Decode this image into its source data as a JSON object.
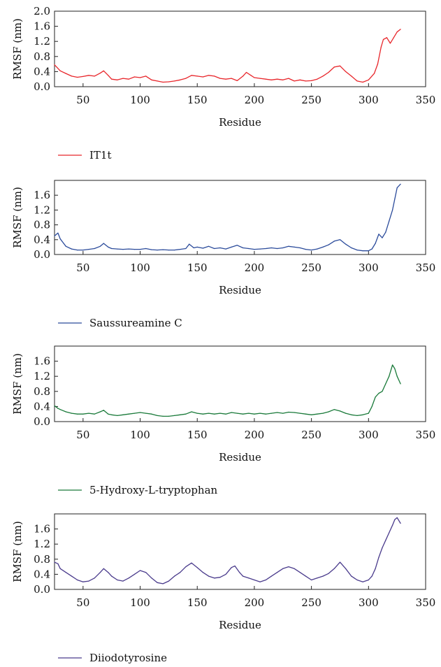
{
  "chart_data": [
    {
      "type": "line",
      "xlabel": "Residue",
      "ylabel": "RMSF (nm)",
      "xlim": [
        25,
        350
      ],
      "ylim": [
        0,
        2.0
      ],
      "xticks": [
        "50",
        "100",
        "150",
        "200",
        "250",
        "300",
        "350"
      ],
      "yticks": [
        "0.0",
        "0.4",
        "0.8",
        "1.2",
        "1.6",
        "2.0"
      ],
      "legend": "bottom-left",
      "series": [
        {
          "name": "IT1t",
          "color": "#e8262b",
          "x": [
            25,
            30,
            35,
            40,
            45,
            50,
            55,
            60,
            65,
            68,
            72,
            75,
            80,
            85,
            90,
            95,
            100,
            105,
            110,
            115,
            120,
            125,
            130,
            135,
            140,
            145,
            150,
            155,
            160,
            165,
            170,
            175,
            180,
            185,
            190,
            193,
            197,
            200,
            205,
            210,
            215,
            220,
            225,
            230,
            235,
            240,
            245,
            250,
            255,
            260,
            265,
            270,
            275,
            280,
            285,
            290,
            295,
            300,
            305,
            308,
            311,
            313,
            316,
            319,
            322,
            325,
            328
          ],
          "values": [
            0.58,
            0.42,
            0.35,
            0.28,
            0.25,
            0.27,
            0.3,
            0.28,
            0.36,
            0.42,
            0.3,
            0.2,
            0.18,
            0.22,
            0.2,
            0.26,
            0.24,
            0.28,
            0.18,
            0.15,
            0.12,
            0.13,
            0.15,
            0.18,
            0.22,
            0.3,
            0.28,
            0.26,
            0.3,
            0.28,
            0.22,
            0.2,
            0.22,
            0.16,
            0.28,
            0.38,
            0.3,
            0.24,
            0.22,
            0.2,
            0.18,
            0.2,
            0.18,
            0.22,
            0.15,
            0.18,
            0.15,
            0.16,
            0.2,
            0.28,
            0.38,
            0.52,
            0.55,
            0.4,
            0.28,
            0.15,
            0.12,
            0.18,
            0.35,
            0.6,
            1.05,
            1.25,
            1.3,
            1.15,
            1.3,
            1.45,
            1.52
          ]
        },
        {
          "name": "Saussureamine C",
          "color": "#2b4b9b",
          "x": [
            25,
            28,
            30,
            33,
            35,
            40,
            45,
            50,
            55,
            60,
            65,
            68,
            72,
            75,
            80,
            85,
            90,
            95,
            100,
            105,
            110,
            115,
            120,
            125,
            130,
            135,
            140,
            143,
            147,
            150,
            155,
            160,
            165,
            170,
            175,
            180,
            185,
            190,
            195,
            200,
            205,
            210,
            215,
            220,
            225,
            230,
            235,
            240,
            245,
            250,
            255,
            260,
            265,
            270,
            275,
            280,
            285,
            290,
            295,
            300,
            303,
            306,
            309,
            312,
            315,
            318,
            321,
            323,
            325,
            328
          ],
          "values": [
            0.5,
            0.58,
            0.42,
            0.3,
            0.22,
            0.15,
            0.12,
            0.12,
            0.14,
            0.16,
            0.22,
            0.3,
            0.2,
            0.16,
            0.15,
            0.14,
            0.15,
            0.14,
            0.14,
            0.16,
            0.13,
            0.12,
            0.13,
            0.12,
            0.12,
            0.14,
            0.16,
            0.28,
            0.18,
            0.2,
            0.17,
            0.22,
            0.16,
            0.18,
            0.15,
            0.2,
            0.25,
            0.18,
            0.16,
            0.14,
            0.15,
            0.16,
            0.18,
            0.16,
            0.18,
            0.22,
            0.2,
            0.18,
            0.14,
            0.12,
            0.15,
            0.2,
            0.26,
            0.36,
            0.4,
            0.28,
            0.18,
            0.12,
            0.1,
            0.1,
            0.15,
            0.3,
            0.55,
            0.45,
            0.6,
            0.9,
            1.2,
            1.5,
            1.8,
            1.9
          ]
        },
        {
          "name": "5-Hydroxy-L-tryptophan",
          "color": "#1a7a3a",
          "x": [
            25,
            28,
            30,
            35,
            40,
            45,
            50,
            55,
            60,
            65,
            68,
            72,
            75,
            80,
            85,
            90,
            95,
            100,
            105,
            110,
            115,
            120,
            125,
            130,
            135,
            140,
            145,
            150,
            155,
            160,
            165,
            170,
            175,
            180,
            185,
            190,
            195,
            200,
            205,
            210,
            215,
            220,
            225,
            230,
            235,
            240,
            245,
            250,
            255,
            260,
            265,
            270,
            275,
            280,
            285,
            290,
            295,
            300,
            303,
            306,
            309,
            312,
            315,
            318,
            321,
            323,
            325,
            328
          ],
          "values": [
            0.42,
            0.35,
            0.32,
            0.26,
            0.22,
            0.2,
            0.2,
            0.22,
            0.2,
            0.26,
            0.3,
            0.2,
            0.18,
            0.16,
            0.18,
            0.2,
            0.22,
            0.24,
            0.22,
            0.2,
            0.16,
            0.14,
            0.14,
            0.16,
            0.18,
            0.2,
            0.26,
            0.22,
            0.2,
            0.22,
            0.2,
            0.22,
            0.2,
            0.24,
            0.22,
            0.2,
            0.22,
            0.2,
            0.22,
            0.2,
            0.22,
            0.24,
            0.22,
            0.25,
            0.24,
            0.22,
            0.2,
            0.18,
            0.2,
            0.22,
            0.26,
            0.32,
            0.28,
            0.22,
            0.18,
            0.16,
            0.18,
            0.22,
            0.4,
            0.65,
            0.75,
            0.8,
            1.0,
            1.2,
            1.5,
            1.4,
            1.2,
            1.0
          ]
        },
        {
          "name": "Diiodotyrosine",
          "color": "#4a3b8c",
          "x": [
            25,
            28,
            30,
            35,
            40,
            45,
            50,
            55,
            60,
            65,
            68,
            72,
            75,
            80,
            85,
            90,
            95,
            100,
            105,
            110,
            115,
            120,
            125,
            130,
            135,
            140,
            145,
            150,
            155,
            160,
            165,
            170,
            175,
            180,
            183,
            187,
            190,
            195,
            200,
            205,
            210,
            215,
            220,
            225,
            230,
            235,
            240,
            245,
            250,
            255,
            260,
            265,
            270,
            275,
            280,
            285,
            290,
            295,
            300,
            303,
            306,
            309,
            312,
            315,
            318,
            321,
            323,
            325,
            328
          ],
          "values": [
            0.72,
            0.68,
            0.55,
            0.45,
            0.35,
            0.25,
            0.2,
            0.22,
            0.3,
            0.45,
            0.55,
            0.45,
            0.35,
            0.25,
            0.22,
            0.3,
            0.4,
            0.5,
            0.45,
            0.3,
            0.18,
            0.15,
            0.22,
            0.35,
            0.45,
            0.6,
            0.7,
            0.58,
            0.45,
            0.35,
            0.3,
            0.32,
            0.4,
            0.58,
            0.62,
            0.45,
            0.35,
            0.3,
            0.25,
            0.2,
            0.25,
            0.35,
            0.45,
            0.55,
            0.6,
            0.55,
            0.45,
            0.35,
            0.25,
            0.3,
            0.35,
            0.42,
            0.55,
            0.72,
            0.55,
            0.35,
            0.25,
            0.2,
            0.25,
            0.35,
            0.55,
            0.85,
            1.1,
            1.3,
            1.5,
            1.7,
            1.85,
            1.9,
            1.75
          ]
        }
      ]
    }
  ]
}
